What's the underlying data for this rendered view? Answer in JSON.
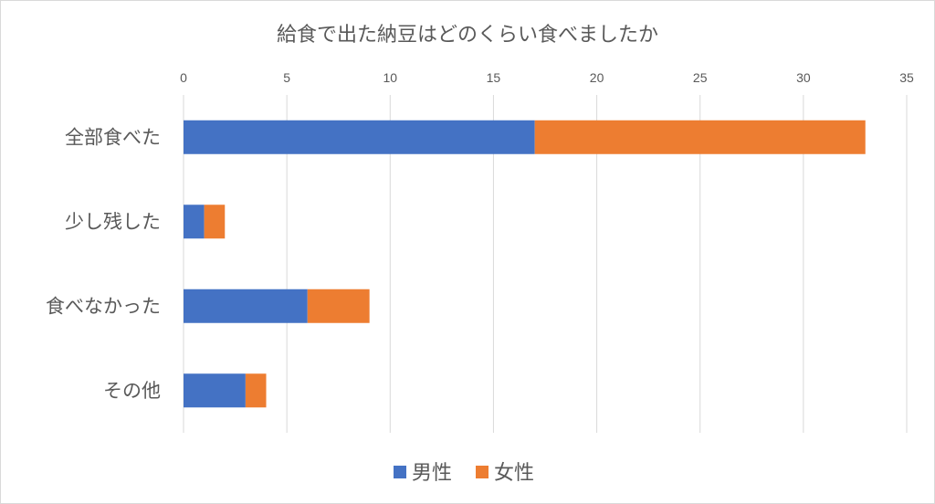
{
  "chart_data": {
    "type": "bar",
    "orientation": "horizontal",
    "stacked": true,
    "title": "給食で出た納豆はどのくらい食べましたか",
    "categories": [
      "全部食べた",
      "少し残した",
      "食べなかった",
      "その他"
    ],
    "series": [
      {
        "name": "男性",
        "values": [
          17,
          1,
          6,
          3
        ],
        "color": "#4472C4"
      },
      {
        "name": "女性",
        "values": [
          16,
          1,
          3,
          1
        ],
        "color": "#ED7D31"
      }
    ],
    "xlim": [
      0,
      35
    ],
    "x_ticks": [
      0,
      5,
      10,
      15,
      20,
      25,
      30,
      35
    ],
    "x_axis_position": "top",
    "grid": true,
    "legend_position": "bottom"
  }
}
